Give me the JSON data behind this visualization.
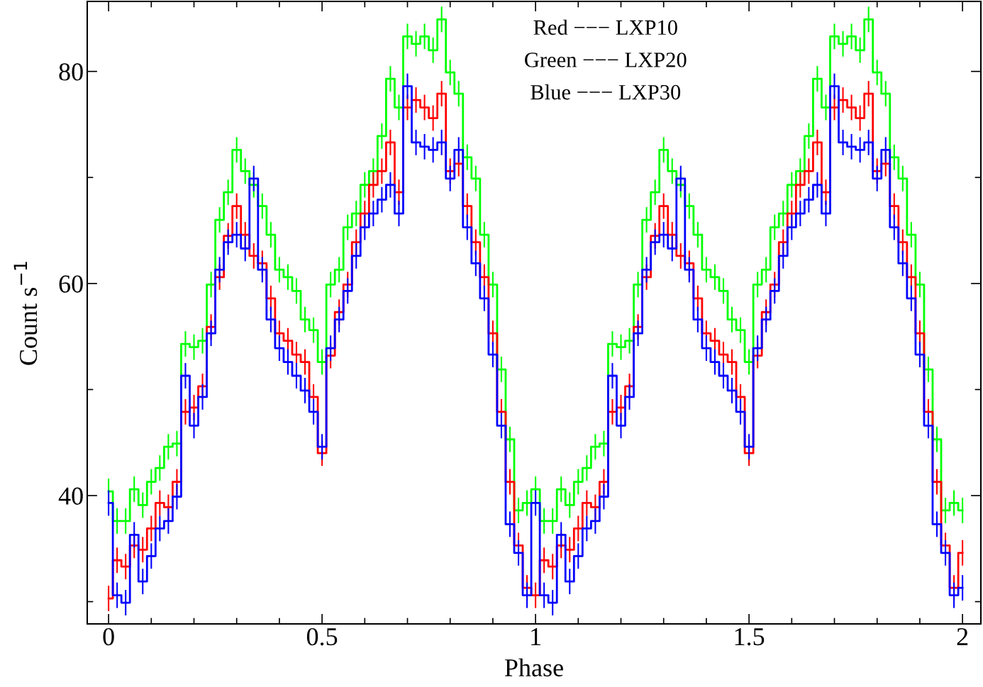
{
  "chart_data": {
    "type": "step",
    "xlabel": "Phase",
    "ylabel": "Count s$^{−1}$",
    "x": [
      0,
      0.02,
      0.04,
      0.06,
      0.08,
      0.1,
      0.12,
      0.14,
      0.16,
      0.18,
      0.2,
      0.22,
      0.24,
      0.26,
      0.28,
      0.3,
      0.32,
      0.34,
      0.36,
      0.38,
      0.4,
      0.42,
      0.44,
      0.46,
      0.48,
      0.5,
      0.52,
      0.54,
      0.56,
      0.58,
      0.6,
      0.62,
      0.64,
      0.66,
      0.68,
      0.7,
      0.72,
      0.74,
      0.76,
      0.78,
      0.8,
      0.82,
      0.84,
      0.86,
      0.88,
      0.9,
      0.92,
      0.94,
      0.96,
      0.98,
      1,
      1.02,
      1.04,
      1.06,
      1.08,
      1.1,
      1.12,
      1.14,
      1.16,
      1.18,
      1.2,
      1.22,
      1.24,
      1.26,
      1.28,
      1.3,
      1.32,
      1.34,
      1.36,
      1.38,
      1.4,
      1.42,
      1.44,
      1.46,
      1.48,
      1.5,
      1.52,
      1.54,
      1.56,
      1.58,
      1.6,
      1.62,
      1.64,
      1.66,
      1.68,
      1.7,
      1.72,
      1.74,
      1.76,
      1.78,
      1.8,
      1.82,
      1.84,
      1.86,
      1.88,
      1.9,
      1.92,
      1.94,
      1.96,
      1.98,
      2
    ],
    "series": [
      {
        "color": "#00ff00",
        "values": [
          40.4,
          37.6,
          37.6,
          40.6,
          39.1,
          41.3,
          42.6,
          44.6,
          44.9,
          54.3,
          54.0,
          54.6,
          59.9,
          66.0,
          68.6,
          72.6,
          70.6,
          69.3,
          67.3,
          64.6,
          61.3,
          60.6,
          59.3,
          56.6,
          55.6,
          52.6,
          59.9,
          61.3,
          65.3,
          66.6,
          69.3,
          70.6,
          73.9,
          79.3,
          76.6,
          83.3,
          82.6,
          83.3,
          82.0,
          84.9,
          79.9,
          77.9,
          71.9,
          69.9,
          64.6,
          59.9,
          51.9,
          45.3,
          38.6,
          39.3,
          40.6,
          37.6,
          37.6,
          40.6,
          39.1,
          41.3,
          42.6,
          44.6,
          44.9,
          54.3,
          54.0,
          54.6,
          59.9,
          66.0,
          68.6,
          72.6,
          70.6,
          69.3,
          67.3,
          64.6,
          61.3,
          60.6,
          59.3,
          56.6,
          55.6,
          52.6,
          59.9,
          61.3,
          65.3,
          66.6,
          69.3,
          70.6,
          73.9,
          79.3,
          76.6,
          83.3,
          82.6,
          83.3,
          82.0,
          84.9,
          79.9,
          77.9,
          71.9,
          69.9,
          64.6,
          59.9,
          51.9,
          45.3,
          38.6,
          39.3,
          38.6
        ],
        "errors": [
          1.2,
          1.2,
          1.2,
          1.2,
          1.2,
          1.2,
          1.2,
          1.2,
          1.2,
          1.2,
          1.2,
          1.2,
          1.2,
          1.2,
          1.2,
          1.2,
          1.2,
          1.2,
          1.2,
          1.2,
          1.2,
          1.2,
          1.2,
          1.2,
          1.2,
          1.2,
          1.2,
          1.2,
          1.2,
          1.2,
          1.2,
          1.2,
          1.2,
          1.2,
          1.2,
          1.2,
          1.2,
          1.2,
          1.2,
          1.2,
          1.2,
          1.2,
          1.2,
          1.2,
          1.2,
          1.2,
          1.2,
          1.2,
          1.2,
          1.2,
          1.2,
          1.2,
          1.2,
          1.2,
          1.2,
          1.2,
          1.2,
          1.2,
          1.2,
          1.2,
          1.2,
          1.2,
          1.2,
          1.2,
          1.2,
          1.2,
          1.2,
          1.2,
          1.2,
          1.2,
          1.2,
          1.2,
          1.2,
          1.2,
          1.2,
          1.2,
          1.2,
          1.2,
          1.2,
          1.2,
          1.2,
          1.2,
          1.2,
          1.2,
          1.2,
          1.2,
          1.2,
          1.2,
          1.2,
          1.2,
          1.2,
          1.2,
          1.2,
          1.2,
          1.2,
          1.2,
          1.2,
          1.2,
          1.2,
          1.2,
          1.2
        ]
      },
      {
        "color": "#ff0000",
        "values": [
          30.3,
          33.9,
          33.3,
          35.3,
          34.9,
          36.9,
          39.3,
          38.9,
          41.3,
          47.9,
          48.3,
          50.3,
          55.9,
          60.6,
          64.5,
          67.3,
          64.6,
          62.6,
          61.9,
          58.6,
          55.3,
          54.6,
          53.3,
          52.6,
          49.3,
          44.0,
          53.2,
          57.3,
          59.9,
          63.9,
          66.6,
          69.3,
          70.6,
          73.3,
          68.6,
          76.6,
          77.3,
          76.6,
          75.6,
          77.9,
          70.6,
          71.3,
          67.3,
          63.9,
          60.6,
          55.3,
          47.9,
          41.3,
          35.3,
          31.3,
          30.6,
          33.9,
          33.3,
          35.3,
          34.9,
          36.9,
          39.3,
          38.9,
          41.3,
          47.9,
          48.3,
          50.3,
          55.9,
          60.6,
          64.5,
          67.3,
          64.6,
          62.6,
          61.9,
          58.6,
          55.3,
          54.6,
          53.3,
          52.6,
          49.3,
          44.0,
          53.2,
          57.3,
          59.9,
          63.9,
          66.6,
          69.3,
          70.6,
          73.3,
          68.6,
          76.6,
          77.3,
          76.6,
          75.6,
          77.9,
          70.6,
          71.3,
          67.3,
          63.9,
          60.6,
          55.3,
          47.9,
          41.3,
          35.3,
          31.3,
          34.6
        ],
        "errors": [
          1.2,
          1.2,
          1.2,
          1.2,
          1.2,
          1.2,
          1.2,
          1.2,
          1.2,
          1.2,
          1.2,
          1.2,
          1.2,
          1.2,
          1.2,
          1.2,
          1.2,
          1.2,
          1.2,
          1.2,
          1.2,
          1.2,
          1.2,
          1.2,
          1.2,
          1.2,
          1.2,
          1.2,
          1.2,
          1.2,
          1.2,
          1.2,
          1.2,
          1.2,
          1.2,
          1.2,
          1.2,
          1.2,
          1.2,
          1.2,
          1.2,
          1.2,
          1.2,
          1.2,
          1.2,
          1.2,
          1.2,
          1.2,
          1.2,
          1.2,
          1.2,
          1.2,
          1.2,
          1.2,
          1.2,
          1.2,
          1.2,
          1.2,
          1.2,
          1.2,
          1.2,
          1.2,
          1.2,
          1.2,
          1.2,
          1.2,
          1.2,
          1.2,
          1.2,
          1.2,
          1.2,
          1.2,
          1.2,
          1.2,
          1.2,
          1.2,
          1.2,
          1.2,
          1.2,
          1.2,
          1.2,
          1.2,
          1.2,
          1.2,
          1.2,
          1.2,
          1.2,
          1.2,
          1.2,
          1.2,
          1.2,
          1.2,
          1.2,
          1.2,
          1.2,
          1.2,
          1.2,
          1.2,
          1.2,
          1.2,
          1.2
        ]
      },
      {
        "color": "#0000ff",
        "values": [
          39.3,
          30.6,
          29.9,
          36.3,
          31.9,
          34.3,
          36.9,
          37.6,
          39.9,
          51.3,
          46.6,
          49.3,
          55.3,
          61.3,
          63.9,
          64.6,
          63.3,
          69.9,
          61.3,
          56.6,
          53.9,
          52.6,
          51.3,
          49.9,
          47.9,
          44.6,
          53.9,
          56.6,
          59.3,
          62.6,
          65.3,
          66.6,
          67.9,
          69.3,
          66.6,
          78.6,
          73.3,
          72.9,
          72.6,
          73.3,
          69.9,
          72.6,
          65.3,
          61.9,
          58.6,
          53.3,
          46.6,
          37.3,
          34.6,
          30.6,
          39.3,
          30.6,
          29.9,
          36.3,
          31.9,
          34.3,
          36.9,
          37.6,
          39.9,
          51.3,
          46.6,
          49.3,
          55.3,
          61.3,
          63.9,
          64.6,
          63.3,
          69.9,
          61.3,
          56.6,
          53.9,
          52.6,
          51.3,
          49.9,
          47.9,
          44.6,
          53.9,
          56.6,
          59.3,
          62.6,
          65.3,
          66.6,
          67.9,
          69.3,
          66.6,
          78.6,
          73.3,
          72.9,
          72.6,
          73.3,
          69.9,
          72.6,
          65.3,
          61.9,
          58.6,
          53.3,
          46.6,
          37.3,
          34.6,
          30.6,
          31.3
        ],
        "errors": [
          1.2,
          1.2,
          1.2,
          1.2,
          1.2,
          1.2,
          1.2,
          1.2,
          1.2,
          1.2,
          1.2,
          1.2,
          1.2,
          1.2,
          1.2,
          1.2,
          1.2,
          1.2,
          1.2,
          1.2,
          1.2,
          1.2,
          1.2,
          1.2,
          1.2,
          1.2,
          1.2,
          1.2,
          1.2,
          1.2,
          1.2,
          1.2,
          1.2,
          1.2,
          1.2,
          1.2,
          1.2,
          1.2,
          1.2,
          1.2,
          1.2,
          1.2,
          1.2,
          1.2,
          1.2,
          1.2,
          1.2,
          1.2,
          1.2,
          1.2,
          1.2,
          1.2,
          1.2,
          1.2,
          1.2,
          1.2,
          1.2,
          1.2,
          1.2,
          1.2,
          1.2,
          1.2,
          1.2,
          1.2,
          1.2,
          1.2,
          1.2,
          1.2,
          1.2,
          1.2,
          1.2,
          1.2,
          1.2,
          1.2,
          1.2,
          1.2,
          1.2,
          1.2,
          1.2,
          1.2,
          1.2,
          1.2,
          1.2,
          1.2,
          1.2,
          1.2,
          1.2,
          1.2,
          1.2,
          1.2,
          1.2,
          1.2,
          1.2,
          1.2,
          1.2,
          1.2,
          1.2,
          1.2,
          1.2,
          1.2,
          1.2
        ]
      }
    ],
    "xlim": [
      -0.05,
      2.043
    ],
    "ylim": [
      27.9,
      86.6
    ],
    "xticks": [
      0,
      {
        "value": 0.1,
        "label": null
      },
      {
        "value": 0.2,
        "label": null
      },
      {
        "value": 0.3,
        "label": null
      },
      {
        "value": 0.4,
        "label": null
      },
      0.5,
      {
        "value": 0.6,
        "label": null
      },
      {
        "value": 0.7,
        "label": null
      },
      {
        "value": 0.8,
        "label": null
      },
      {
        "value": 0.9,
        "label": null
      },
      1,
      {
        "value": 1.1,
        "label": null
      },
      {
        "value": 1.2,
        "label": null
      },
      {
        "value": 1.3,
        "label": null
      },
      {
        "value": 1.4,
        "label": null
      },
      1.5,
      {
        "value": 1.6,
        "label": null
      },
      {
        "value": 1.7,
        "label": null
      },
      {
        "value": 1.8,
        "label": null
      },
      {
        "value": 1.9,
        "label": null
      },
      2
    ],
    "yticks": [
      {
        "value": 30,
        "label": null
      },
      40,
      {
        "value": 50,
        "label": null
      },
      60,
      {
        "value": 70,
        "label": null
      },
      80
    ],
    "annotations": [
      "Red −−− LXP10",
      "Green −−− LXP20",
      "Blue −−− LXP30"
    ],
    "grid": false,
    "legend": false
  }
}
